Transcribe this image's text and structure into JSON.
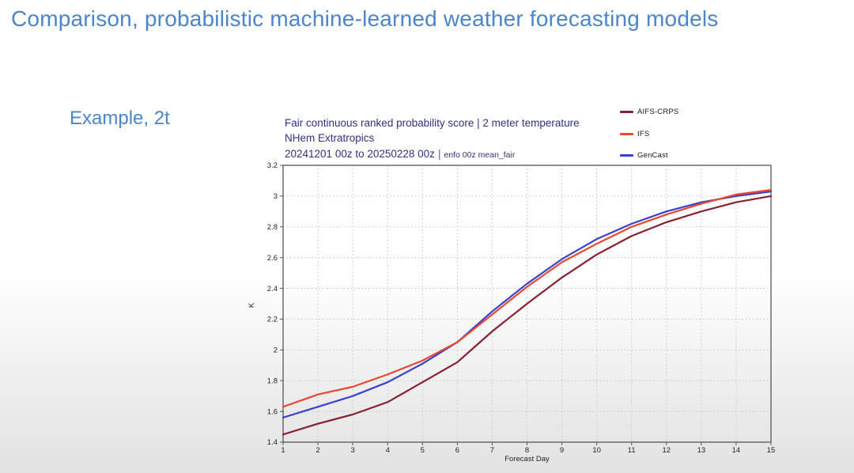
{
  "slide": {
    "title": "Comparison, probabilistic machine-learned weather forecasting models",
    "example_label": "Example, 2t",
    "title_color": "#4c85c8",
    "header_color": "#31317e",
    "background_bottom": "#e2e2e2"
  },
  "chart_data": {
    "type": "line",
    "title_line1": "Fair continuous ranked probability score | 2 meter temperature",
    "title_line2": "NHem Extratropics",
    "title_line3": "20241201 00z to 20250228 00z",
    "title_line3_sep": "|",
    "title_line3_note": "enfo 00z mean_fair",
    "xlabel": "Forecast Day",
    "ylabel": "K",
    "xlim": [
      1,
      15
    ],
    "ylim": [
      1.4,
      3.2
    ],
    "grid": "dotted",
    "grid_color": "#c4c4c4",
    "axis_color": "#555555",
    "tick_text_color": "#222222",
    "legend_position": "upper-right",
    "x": [
      1,
      2,
      3,
      4,
      5,
      6,
      7,
      8,
      9,
      10,
      11,
      12,
      13,
      14,
      15
    ],
    "xtick_labels": [
      "1",
      "2",
      "3",
      "4",
      "5",
      "6",
      "7",
      "8",
      "9",
      "10",
      "11",
      "12",
      "13",
      "14",
      "15"
    ],
    "ytick_values": [
      1.4,
      1.6,
      1.8,
      2.0,
      2.2,
      2.4,
      2.6,
      2.8,
      3.0,
      3.2
    ],
    "ytick_labels": [
      "1.4",
      "1.6",
      "1.8",
      "2",
      "2.2",
      "2.4",
      "2.6",
      "2.8",
      "3",
      "3.2"
    ],
    "series": [
      {
        "name": "AIFS-CRPS",
        "color": "#87212f",
        "values": [
          1.45,
          1.52,
          1.58,
          1.66,
          1.79,
          1.92,
          2.12,
          2.3,
          2.47,
          2.62,
          2.74,
          2.83,
          2.9,
          2.96,
          3.0
        ]
      },
      {
        "name": "IFS",
        "color": "#e9482e",
        "values": [
          1.63,
          1.71,
          1.76,
          1.84,
          1.93,
          2.05,
          2.23,
          2.41,
          2.57,
          2.69,
          2.8,
          2.88,
          2.95,
          3.01,
          3.04
        ]
      },
      {
        "name": "GenCast",
        "color": "#3742d0",
        "values": [
          1.56,
          1.63,
          1.7,
          1.79,
          1.91,
          2.05,
          2.25,
          2.43,
          2.59,
          2.72,
          2.82,
          2.9,
          2.96,
          3.0,
          3.03
        ]
      }
    ]
  }
}
